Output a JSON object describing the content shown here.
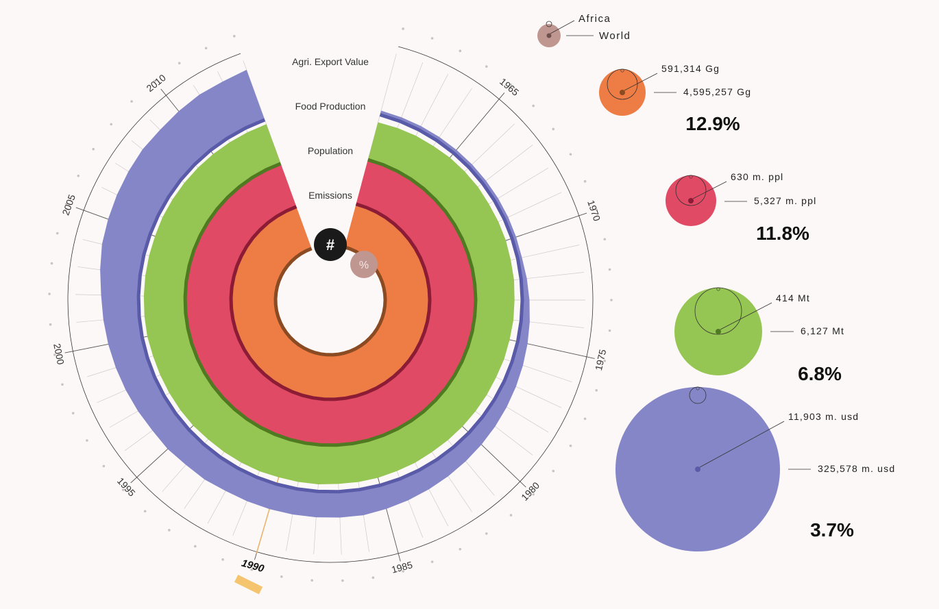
{
  "chart_data": {
    "type": "radial-area",
    "years": [
      1961,
      1962,
      1963,
      1964,
      1965,
      1966,
      1967,
      1968,
      1969,
      1970,
      1971,
      1972,
      1973,
      1974,
      1975,
      1976,
      1977,
      1978,
      1979,
      1980,
      1981,
      1982,
      1983,
      1984,
      1985,
      1986,
      1987,
      1988,
      1989,
      1990,
      1991,
      1992,
      1993,
      1994,
      1995,
      1996,
      1997,
      1998,
      1999,
      2000,
      2001,
      2002,
      2003,
      2004,
      2005,
      2006,
      2007,
      2008,
      2009,
      2010,
      2011,
      2012,
      2013
    ],
    "year_labels": [
      "1965",
      "1970",
      "1975",
      "1980",
      "1985",
      "1990",
      "1995",
      "2000",
      "2005",
      "2010"
    ],
    "selected_year": "1990",
    "series": [
      {
        "name": "Emissions",
        "color": "#ee7c45",
        "dark_color": "#8a4a22",
        "values": [
          13.6,
          13.7,
          13.8,
          13.8,
          13.9,
          14.0,
          14.0,
          14.1,
          14.1,
          14.2,
          14.2,
          14.3,
          14.3,
          14.4,
          14.4,
          14.3,
          14.2,
          14.1,
          14.0,
          13.8,
          13.6,
          13.5,
          13.4,
          13.3,
          13.2,
          13.1,
          13.0,
          13.0,
          12.9,
          12.9,
          12.8,
          12.8,
          12.8,
          12.8,
          12.9,
          12.9,
          12.9,
          12.9,
          12.9,
          12.9,
          12.9,
          12.9,
          12.9,
          12.9,
          12.9,
          12.9,
          12.9,
          12.9,
          12.9,
          12.9,
          12.9,
          12.9,
          12.9
        ]
      },
      {
        "name": "Population",
        "color": "#e04a65",
        "dark_color": "#8c1c35",
        "values": [
          9.3,
          9.3,
          9.4,
          9.4,
          9.4,
          9.5,
          9.5,
          9.5,
          9.6,
          9.6,
          9.7,
          9.7,
          9.8,
          9.8,
          9.9,
          9.9,
          10.0,
          10.0,
          10.1,
          10.1,
          10.2,
          10.3,
          10.3,
          10.4,
          10.5,
          10.5,
          10.6,
          10.6,
          10.7,
          10.8,
          10.8,
          10.9,
          11.0,
          11.0,
          11.1,
          11.2,
          11.2,
          11.3,
          11.4,
          11.4,
          11.5,
          11.5,
          11.6,
          11.6,
          11.7,
          11.7,
          11.7,
          11.8,
          11.8,
          11.8,
          11.8,
          11.8,
          11.8
        ]
      },
      {
        "name": "Food Production",
        "color": "#95c552",
        "dark_color": "#4f7a22",
        "values": [
          6.3,
          6.4,
          6.5,
          6.5,
          6.6,
          6.6,
          6.6,
          6.5,
          6.5,
          6.5,
          6.4,
          6.4,
          6.3,
          6.3,
          6.2,
          6.2,
          6.1,
          6.1,
          6.1,
          6.1,
          6.1,
          6.1,
          6.2,
          6.2,
          6.3,
          6.3,
          6.3,
          6.4,
          6.4,
          6.4,
          6.5,
          6.5,
          6.5,
          6.5,
          6.6,
          6.6,
          6.6,
          6.6,
          6.6,
          6.7,
          6.7,
          6.7,
          6.7,
          6.7,
          6.7,
          6.8,
          6.8,
          6.8,
          6.8,
          6.8,
          6.8,
          6.8,
          6.8
        ]
      },
      {
        "name": "Agri. Export Value",
        "color": "#8586c8",
        "dark_color": "#5a5ba8",
        "values": [
          0.3,
          0.3,
          0.3,
          0.3,
          0.3,
          0.3,
          0.3,
          0.3,
          0.3,
          0.3,
          0.3,
          0.4,
          0.5,
          0.6,
          0.7,
          0.8,
          0.9,
          1.0,
          1.1,
          1.2,
          1.3,
          1.4,
          1.5,
          1.6,
          1.7,
          1.8,
          1.8,
          1.8,
          1.8,
          1.8,
          1.8,
          1.8,
          1.9,
          1.9,
          2.0,
          2.0,
          2.1,
          2.2,
          2.3,
          2.4,
          2.5,
          2.6,
          2.8,
          3.0,
          3.1,
          3.2,
          3.3,
          3.4,
          3.4,
          3.5,
          3.6,
          3.6,
          3.7
        ]
      }
    ],
    "legend": {
      "africa_label": "Africa",
      "world_label": "World"
    },
    "summary": [
      {
        "metric": "Emissions",
        "africa": "591,314 Gg",
        "world": "4,595,257 Gg",
        "percent": "12.9%",
        "africa_value": 591314,
        "world_value": 4595257
      },
      {
        "metric": "Population",
        "africa": "630 m. ppl",
        "world": "5,327 m. ppl",
        "percent": "11.8%",
        "africa_value": 630,
        "world_value": 5327
      },
      {
        "metric": "Food Production",
        "africa": "414 Mt",
        "world": "6,127 Mt",
        "percent": "6.8%",
        "africa_value": 414,
        "world_value": 6127
      },
      {
        "metric": "Agri. Export Value",
        "africa": "11,903 m. usd",
        "world": "325,578 m. usd",
        "percent": "3.7%",
        "africa_value": 11903,
        "world_value": 325578
      }
    ]
  },
  "controls": {
    "absolute_label": "#",
    "percent_label": "%"
  },
  "colors": {
    "background": "#fcf8f7",
    "legend_dot": "#c09690",
    "selected_year": "#f5c46e",
    "absolute_toggle": "#1a1a1a",
    "percent_toggle": "#c09690"
  }
}
